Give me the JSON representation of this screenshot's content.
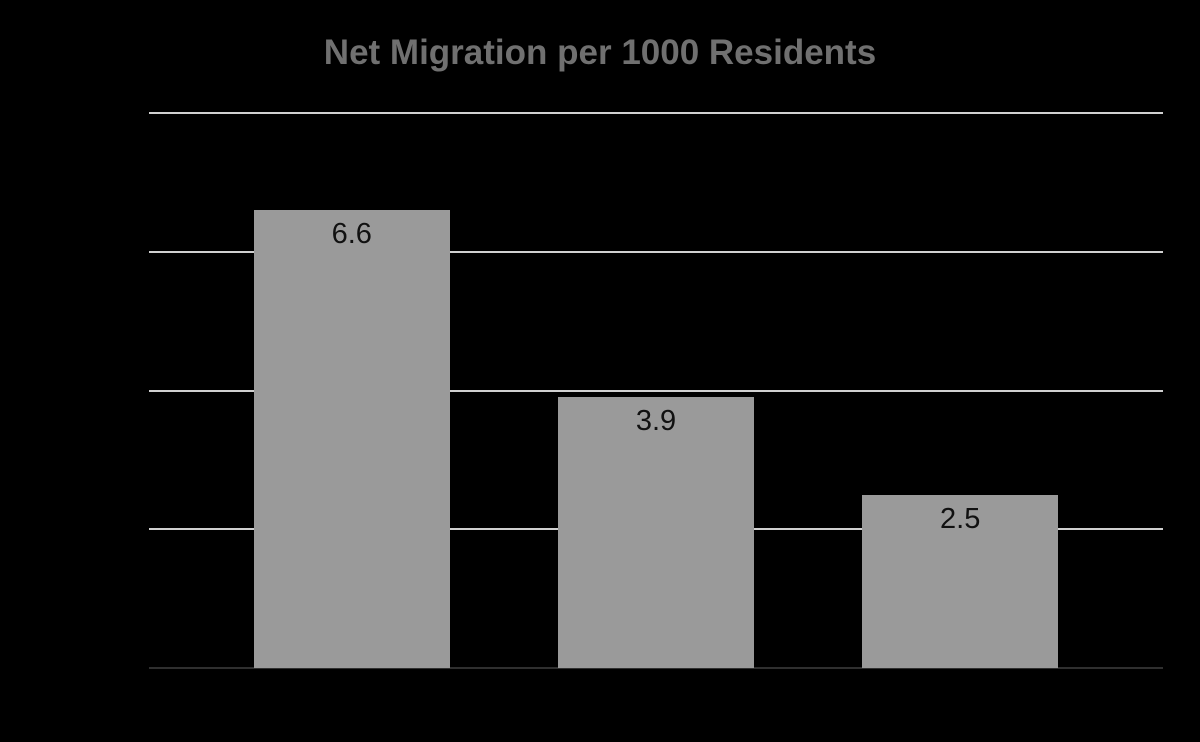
{
  "chart_data": {
    "type": "bar",
    "title": "Net Migration per 1000 Residents",
    "values": [
      6.6,
      3.9,
      2.5
    ],
    "data_labels": [
      "6.6",
      "3.9",
      "2.5"
    ],
    "categories_visible": false,
    "xlabel": "",
    "ylabel": "",
    "ylim": [
      0,
      8
    ],
    "gridline_values": [
      8,
      6,
      4,
      2
    ],
    "grid": true,
    "legend": false,
    "bar_center_fractions": [
      0.2,
      0.5,
      0.8
    ],
    "colors": {
      "background": "#000000",
      "bar": "#9a9a9a",
      "gridline": "#d0d0d0",
      "axis_line": "#2f2f2f",
      "title_text": "#707070",
      "data_label_text": "#111111"
    }
  }
}
